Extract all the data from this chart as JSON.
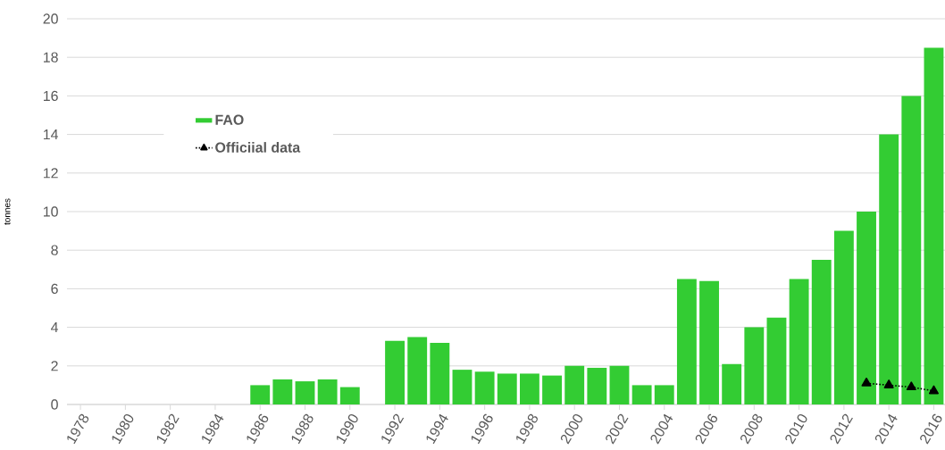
{
  "chart_data": {
    "type": "bar",
    "ylabel": "tonnes",
    "categories": [
      "1978",
      null,
      "1980",
      null,
      "1982",
      null,
      "1984",
      null,
      "1986",
      null,
      "1988",
      null,
      "1990",
      null,
      "1992",
      null,
      "1994",
      null,
      "1996",
      null,
      "1998",
      null,
      "2000",
      null,
      "2002",
      null,
      "2004",
      null,
      "2006",
      null,
      "2008",
      null,
      "2010",
      null,
      "2012",
      null,
      "2014",
      null,
      "2016"
    ],
    "series": [
      {
        "name": "FAO",
        "color": "#33cc33",
        "values": [
          null,
          null,
          null,
          null,
          null,
          null,
          null,
          null,
          1.0,
          1.3,
          1.2,
          1.3,
          0.9,
          null,
          3.3,
          3.5,
          3.2,
          1.8,
          1.7,
          1.6,
          1.6,
          1.5,
          2.0,
          1.9,
          2.0,
          1.0,
          1.0,
          6.5,
          6.4,
          2.1,
          4.0,
          4.5,
          6.5,
          7.5,
          9.0,
          10.0,
          14.0,
          16.0,
          18.5
        ]
      },
      {
        "name": "Officiial data",
        "type": "line",
        "color": "#000000",
        "marker": "triangle",
        "line_style": "dotted",
        "values": [
          null,
          null,
          null,
          null,
          null,
          null,
          null,
          null,
          null,
          null,
          null,
          null,
          null,
          null,
          null,
          null,
          null,
          null,
          null,
          null,
          null,
          null,
          null,
          null,
          null,
          null,
          null,
          null,
          null,
          null,
          null,
          null,
          null,
          null,
          null,
          1.1,
          1.0,
          0.9,
          0.7
        ]
      }
    ],
    "ylim": [
      0,
      20
    ],
    "yticks": [
      0,
      2,
      4,
      6,
      8,
      10,
      12,
      14,
      16,
      18,
      20
    ],
    "grid": "y",
    "legend": "top left"
  }
}
